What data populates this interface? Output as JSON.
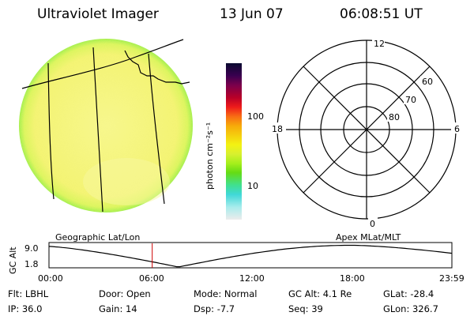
{
  "header": {
    "title": "Ultraviolet Imager",
    "date": "13 Jun 07",
    "time": "06:08:51 UT"
  },
  "colorbar": {
    "label": "photon cm⁻²s⁻¹",
    "ticks": [
      "100",
      "10"
    ]
  },
  "polar": {
    "mlt_labels": {
      "top": "12",
      "left": "18",
      "right": "6",
      "bottom": "0"
    },
    "lat_labels": [
      "60",
      "70",
      "80"
    ]
  },
  "map_labels": {
    "left": "Geographic Lat/Lon",
    "right": "Apex MLat/MLT"
  },
  "alt_plot": {
    "axis_label": "GC Alt",
    "y_ticks": [
      "9.0",
      "1.8"
    ],
    "x_ticks": [
      "00:00",
      "06:00",
      "12:00",
      "18:00",
      "23:59"
    ],
    "marker_time_hours": 6.15
  },
  "info": {
    "row1": [
      {
        "key": "Flt:",
        "val": "LBHL"
      },
      {
        "key": "Door:",
        "val": "Open"
      },
      {
        "key": "Mode:",
        "val": "Normal"
      },
      {
        "key": "GC Alt:",
        "val": "4.1 Re"
      },
      {
        "key": "GLat:",
        "val": "-28.4"
      }
    ],
    "row2": [
      {
        "key": "IP:",
        "val": "36.0"
      },
      {
        "key": "Gain:",
        "val": "14"
      },
      {
        "key": "Dsp:",
        "val": "-7.7"
      },
      {
        "key": "Seq:",
        "val": "39"
      },
      {
        "key": "GLon:",
        "val": "326.7"
      }
    ]
  },
  "colors": {
    "disk_main": "#f4f47a",
    "disk_edge": "#a8f048",
    "marker": "#cc0000"
  }
}
